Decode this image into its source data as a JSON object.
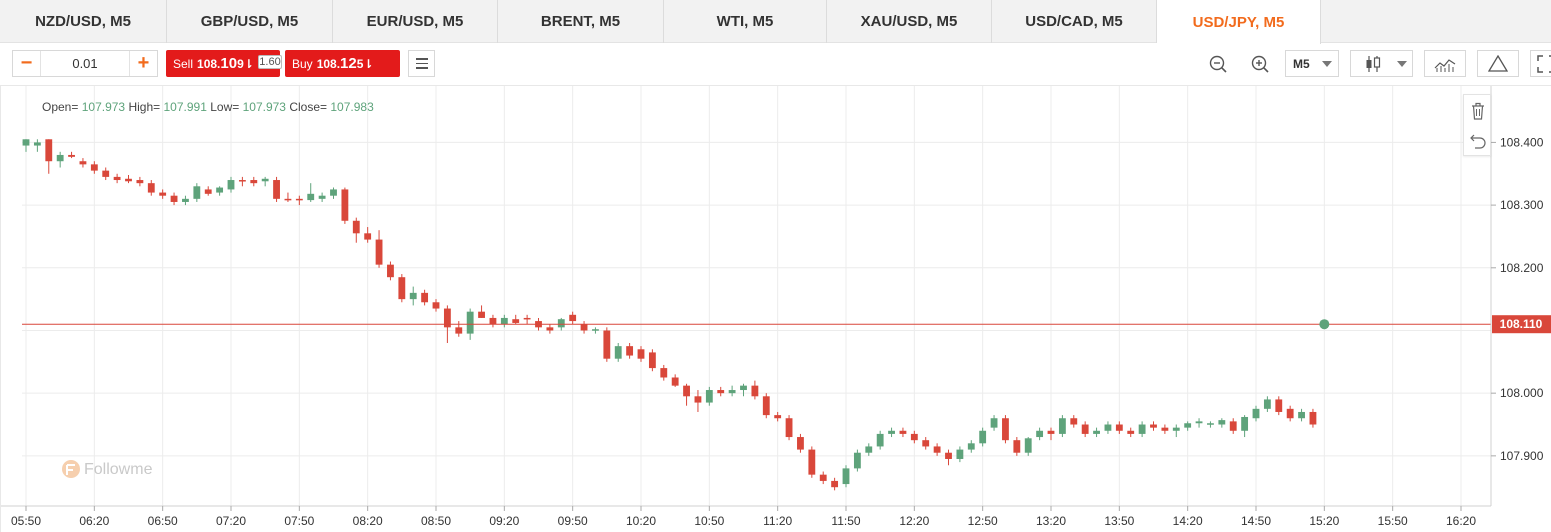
{
  "tabs": [
    {
      "label": "NZD/USD, M5",
      "active": false
    },
    {
      "label": "GBP/USD, M5",
      "active": false
    },
    {
      "label": "EUR/USD, M5",
      "active": false
    },
    {
      "label": "BRENT, M5",
      "active": false
    },
    {
      "label": "WTI, M5",
      "active": false
    },
    {
      "label": "XAU/USD, M5",
      "active": false
    },
    {
      "label": "USD/CAD, M5",
      "active": false
    },
    {
      "label": "USD/JPY, M5",
      "active": true
    }
  ],
  "toolbar": {
    "quantity": "0.01",
    "minus": "−",
    "plus": "+",
    "sell_label": "Sell",
    "sell_price_main": "108.",
    "sell_price_big": "10",
    "sell_price_tail": "9",
    "buy_label": "Buy",
    "buy_price_main": "108.",
    "buy_price_big": "12",
    "buy_price_tail": "5",
    "arrow": "⇂",
    "spread": "1.60",
    "timeframe": "M5"
  },
  "ohlc": {
    "open_label": "Open=",
    "open": "107.973",
    "high_label": "High=",
    "high": "107.991",
    "low_label": "Low=",
    "low": "107.973",
    "close_label": "Close=",
    "close": "107.983"
  },
  "watermark": "Followme",
  "colors": {
    "up": "#5ea37b",
    "down": "#d9473a",
    "accent": "#f26b1d",
    "price_line": "#d9473a"
  },
  "icons": [
    "zoom-out-icon",
    "zoom-in-icon",
    "candlestick-icon",
    "indicators-icon",
    "drawing-icon",
    "fullscreen-icon",
    "trash-icon",
    "undo-icon",
    "menu-icon"
  ],
  "chart_data": {
    "type": "candlestick",
    "symbol": "USD/JPY",
    "timeframe": "M5",
    "current_price": "108.110",
    "y_ticks": [
      "108.400",
      "108.300",
      "108.200",
      "108.000",
      "107.900"
    ],
    "x_ticks": [
      "05:50",
      "06:20",
      "06:50",
      "07:20",
      "07:50",
      "08:20",
      "08:50",
      "09:20",
      "09:50",
      "10:20",
      "10:50",
      "11:20",
      "11:50",
      "12:20",
      "12:50",
      "13:20",
      "13:50",
      "14:20",
      "14:50",
      "15:20",
      "15:50",
      "16:20"
    ],
    "ylim": [
      107.82,
      108.49
    ],
    "x_range": [
      "05:50",
      "16:20"
    ],
    "grid": true,
    "candles": [
      {
        "t": "05:50",
        "o": 108.395,
        "h": 108.405,
        "l": 108.385,
        "c": 108.405
      },
      {
        "t": "05:55",
        "o": 108.395,
        "h": 108.405,
        "l": 108.385,
        "c": 108.4
      },
      {
        "t": "06:00",
        "o": 108.405,
        "h": 108.405,
        "l": 108.35,
        "c": 108.37
      },
      {
        "t": "06:05",
        "o": 108.37,
        "h": 108.385,
        "l": 108.36,
        "c": 108.38
      },
      {
        "t": "06:10",
        "o": 108.38,
        "h": 108.385,
        "l": 108.375,
        "c": 108.377
      },
      {
        "t": "06:15",
        "o": 108.37,
        "h": 108.375,
        "l": 108.36,
        "c": 108.365
      },
      {
        "t": "06:20",
        "o": 108.365,
        "h": 108.37,
        "l": 108.35,
        "c": 108.355
      },
      {
        "t": "06:25",
        "o": 108.355,
        "h": 108.36,
        "l": 108.34,
        "c": 108.345
      },
      {
        "t": "06:30",
        "o": 108.345,
        "h": 108.35,
        "l": 108.335,
        "c": 108.34
      },
      {
        "t": "06:35",
        "o": 108.342,
        "h": 108.348,
        "l": 108.335,
        "c": 108.338
      },
      {
        "t": "06:40",
        "o": 108.34,
        "h": 108.345,
        "l": 108.33,
        "c": 108.335
      },
      {
        "t": "06:45",
        "o": 108.335,
        "h": 108.34,
        "l": 108.315,
        "c": 108.32
      },
      {
        "t": "06:50",
        "o": 108.32,
        "h": 108.325,
        "l": 108.31,
        "c": 108.315
      },
      {
        "t": "06:55",
        "o": 108.315,
        "h": 108.32,
        "l": 108.3,
        "c": 108.305
      },
      {
        "t": "07:00",
        "o": 108.305,
        "h": 108.315,
        "l": 108.3,
        "c": 108.31
      },
      {
        "t": "07:05",
        "o": 108.31,
        "h": 108.335,
        "l": 108.305,
        "c": 108.33
      },
      {
        "t": "07:10",
        "o": 108.325,
        "h": 108.33,
        "l": 108.315,
        "c": 108.318
      },
      {
        "t": "07:15",
        "o": 108.32,
        "h": 108.33,
        "l": 108.315,
        "c": 108.328
      },
      {
        "t": "07:20",
        "o": 108.325,
        "h": 108.345,
        "l": 108.32,
        "c": 108.34
      },
      {
        "t": "07:25",
        "o": 108.34,
        "h": 108.345,
        "l": 108.33,
        "c": 108.338
      },
      {
        "t": "07:30",
        "o": 108.34,
        "h": 108.345,
        "l": 108.33,
        "c": 108.335
      },
      {
        "t": "07:35",
        "o": 108.338,
        "h": 108.345,
        "l": 108.33,
        "c": 108.342
      },
      {
        "t": "07:40",
        "o": 108.34,
        "h": 108.345,
        "l": 108.305,
        "c": 108.31
      },
      {
        "t": "07:45",
        "o": 108.31,
        "h": 108.32,
        "l": 108.305,
        "c": 108.308
      },
      {
        "t": "07:50",
        "o": 108.31,
        "h": 108.315,
        "l": 108.3,
        "c": 108.308
      },
      {
        "t": "07:55",
        "o": 108.308,
        "h": 108.335,
        "l": 108.305,
        "c": 108.318
      },
      {
        "t": "08:00",
        "o": 108.31,
        "h": 108.32,
        "l": 108.305,
        "c": 108.315
      },
      {
        "t": "08:05",
        "o": 108.315,
        "h": 108.328,
        "l": 108.31,
        "c": 108.325
      },
      {
        "t": "08:10",
        "o": 108.325,
        "h": 108.328,
        "l": 108.27,
        "c": 108.275
      },
      {
        "t": "08:15",
        "o": 108.275,
        "h": 108.28,
        "l": 108.24,
        "c": 108.255
      },
      {
        "t": "08:20",
        "o": 108.255,
        "h": 108.265,
        "l": 108.24,
        "c": 108.245
      },
      {
        "t": "08:25",
        "o": 108.245,
        "h": 108.26,
        "l": 108.2,
        "c": 108.205
      },
      {
        "t": "08:30",
        "o": 108.205,
        "h": 108.21,
        "l": 108.18,
        "c": 108.185
      },
      {
        "t": "08:35",
        "o": 108.185,
        "h": 108.19,
        "l": 108.145,
        "c": 108.15
      },
      {
        "t": "08:40",
        "o": 108.15,
        "h": 108.17,
        "l": 108.14,
        "c": 108.16
      },
      {
        "t": "08:45",
        "o": 108.16,
        "h": 108.165,
        "l": 108.14,
        "c": 108.145
      },
      {
        "t": "08:50",
        "o": 108.145,
        "h": 108.15,
        "l": 108.13,
        "c": 108.135
      },
      {
        "t": "08:55",
        "o": 108.135,
        "h": 108.14,
        "l": 108.08,
        "c": 108.105
      },
      {
        "t": "09:00",
        "o": 108.105,
        "h": 108.115,
        "l": 108.09,
        "c": 108.095
      },
      {
        "t": "09:05",
        "o": 108.095,
        "h": 108.135,
        "l": 108.085,
        "c": 108.13
      },
      {
        "t": "09:10",
        "o": 108.13,
        "h": 108.14,
        "l": 108.12,
        "c": 108.12
      },
      {
        "t": "09:15",
        "o": 108.12,
        "h": 108.125,
        "l": 108.105,
        "c": 108.11
      },
      {
        "t": "09:20",
        "o": 108.11,
        "h": 108.125,
        "l": 108.105,
        "c": 108.12
      },
      {
        "t": "09:25",
        "o": 108.118,
        "h": 108.125,
        "l": 108.11,
        "c": 108.112
      },
      {
        "t": "09:30",
        "o": 108.12,
        "h": 108.125,
        "l": 108.11,
        "c": 108.118
      },
      {
        "t": "09:35",
        "o": 108.115,
        "h": 108.12,
        "l": 108.1,
        "c": 108.105
      },
      {
        "t": "09:40",
        "o": 108.105,
        "h": 108.11,
        "l": 108.095,
        "c": 108.1
      },
      {
        "t": "09:45",
        "o": 108.105,
        "h": 108.12,
        "l": 108.1,
        "c": 108.118
      },
      {
        "t": "09:50",
        "o": 108.125,
        "h": 108.13,
        "l": 108.11,
        "c": 108.115
      },
      {
        "t": "09:55",
        "o": 108.11,
        "h": 108.115,
        "l": 108.095,
        "c": 108.1
      },
      {
        "t": "10:00",
        "o": 108.1,
        "h": 108.105,
        "l": 108.095,
        "c": 108.102
      },
      {
        "t": "10:05",
        "o": 108.1,
        "h": 108.105,
        "l": 108.05,
        "c": 108.055
      },
      {
        "t": "10:10",
        "o": 108.055,
        "h": 108.08,
        "l": 108.05,
        "c": 108.075
      },
      {
        "t": "10:15",
        "o": 108.075,
        "h": 108.08,
        "l": 108.055,
        "c": 108.06
      },
      {
        "t": "10:20",
        "o": 108.07,
        "h": 108.075,
        "l": 108.05,
        "c": 108.055
      },
      {
        "t": "10:25",
        "o": 108.065,
        "h": 108.07,
        "l": 108.035,
        "c": 108.04
      },
      {
        "t": "10:30",
        "o": 108.04,
        "h": 108.045,
        "l": 108.02,
        "c": 108.025
      },
      {
        "t": "10:35",
        "o": 108.025,
        "h": 108.03,
        "l": 108.01,
        "c": 108.012
      },
      {
        "t": "10:40",
        "o": 108.012,
        "h": 108.015,
        "l": 107.98,
        "c": 107.995
      },
      {
        "t": "10:45",
        "o": 107.995,
        "h": 108.005,
        "l": 107.97,
        "c": 107.985
      },
      {
        "t": "10:50",
        "o": 107.985,
        "h": 108.01,
        "l": 107.98,
        "c": 108.005
      },
      {
        "t": "10:55",
        "o": 108.005,
        "h": 108.01,
        "l": 107.995,
        "c": 108.0
      },
      {
        "t": "11:00",
        "o": 108.0,
        "h": 108.012,
        "l": 107.995,
        "c": 108.005
      },
      {
        "t": "11:05",
        "o": 108.005,
        "h": 108.015,
        "l": 107.995,
        "c": 108.012
      },
      {
        "t": "11:10",
        "o": 108.012,
        "h": 108.02,
        "l": 107.99,
        "c": 107.995
      },
      {
        "t": "11:15",
        "o": 107.995,
        "h": 108.0,
        "l": 107.96,
        "c": 107.965
      },
      {
        "t": "11:20",
        "o": 107.965,
        "h": 107.97,
        "l": 107.955,
        "c": 107.96
      },
      {
        "t": "11:25",
        "o": 107.96,
        "h": 107.965,
        "l": 107.925,
        "c": 107.93
      },
      {
        "t": "11:30",
        "o": 107.93,
        "h": 107.935,
        "l": 107.905,
        "c": 107.91
      },
      {
        "t": "11:35",
        "o": 107.91,
        "h": 107.915,
        "l": 107.865,
        "c": 107.87
      },
      {
        "t": "11:40",
        "o": 107.87,
        "h": 107.875,
        "l": 107.855,
        "c": 107.86
      },
      {
        "t": "11:45",
        "o": 107.86,
        "h": 107.865,
        "l": 107.845,
        "c": 107.85
      },
      {
        "t": "11:50",
        "o": 107.855,
        "h": 107.885,
        "l": 107.85,
        "c": 107.88
      },
      {
        "t": "11:55",
        "o": 107.88,
        "h": 107.91,
        "l": 107.875,
        "c": 107.905
      },
      {
        "t": "12:00",
        "o": 107.905,
        "h": 107.92,
        "l": 107.9,
        "c": 107.915
      },
      {
        "t": "12:05",
        "o": 107.915,
        "h": 107.94,
        "l": 107.91,
        "c": 107.935
      },
      {
        "t": "12:10",
        "o": 107.935,
        "h": 107.945,
        "l": 107.93,
        "c": 107.94
      },
      {
        "t": "12:15",
        "o": 107.94,
        "h": 107.945,
        "l": 107.93,
        "c": 107.935
      },
      {
        "t": "12:20",
        "o": 107.935,
        "h": 107.94,
        "l": 107.92,
        "c": 107.925
      },
      {
        "t": "12:25",
        "o": 107.925,
        "h": 107.93,
        "l": 107.91,
        "c": 107.915
      },
      {
        "t": "12:30",
        "o": 107.915,
        "h": 107.92,
        "l": 107.9,
        "c": 107.905
      },
      {
        "t": "12:35",
        "o": 107.905,
        "h": 107.91,
        "l": 107.885,
        "c": 107.895
      },
      {
        "t": "12:40",
        "o": 107.895,
        "h": 107.915,
        "l": 107.89,
        "c": 107.91
      },
      {
        "t": "12:45",
        "o": 107.91,
        "h": 107.925,
        "l": 107.905,
        "c": 107.92
      },
      {
        "t": "12:50",
        "o": 107.92,
        "h": 107.945,
        "l": 107.915,
        "c": 107.94
      },
      {
        "t": "12:55",
        "o": 107.945,
        "h": 107.965,
        "l": 107.94,
        "c": 107.96
      },
      {
        "t": "13:00",
        "o": 107.96,
        "h": 107.965,
        "l": 107.92,
        "c": 107.925
      },
      {
        "t": "13:05",
        "o": 107.925,
        "h": 107.93,
        "l": 107.9,
        "c": 107.905
      },
      {
        "t": "13:10",
        "o": 107.905,
        "h": 107.93,
        "l": 107.9,
        "c": 107.928
      },
      {
        "t": "13:15",
        "o": 107.93,
        "h": 107.945,
        "l": 107.925,
        "c": 107.94
      },
      {
        "t": "13:20",
        "o": 107.94,
        "h": 107.945,
        "l": 107.925,
        "c": 107.935
      },
      {
        "t": "13:25",
        "o": 107.935,
        "h": 107.965,
        "l": 107.93,
        "c": 107.96
      },
      {
        "t": "13:30",
        "o": 107.96,
        "h": 107.965,
        "l": 107.945,
        "c": 107.95
      },
      {
        "t": "13:35",
        "o": 107.95,
        "h": 107.955,
        "l": 107.93,
        "c": 107.935
      },
      {
        "t": "13:40",
        "o": 107.935,
        "h": 107.945,
        "l": 107.93,
        "c": 107.94
      },
      {
        "t": "13:45",
        "o": 107.94,
        "h": 107.955,
        "l": 107.935,
        "c": 107.95
      },
      {
        "t": "13:50",
        "o": 107.95,
        "h": 107.955,
        "l": 107.935,
        "c": 107.94
      },
      {
        "t": "13:55",
        "o": 107.94,
        "h": 107.945,
        "l": 107.93,
        "c": 107.935
      },
      {
        "t": "14:00",
        "o": 107.935,
        "h": 107.955,
        "l": 107.93,
        "c": 107.95
      },
      {
        "t": "14:05",
        "o": 107.95,
        "h": 107.955,
        "l": 107.94,
        "c": 107.945
      },
      {
        "t": "14:10",
        "o": 107.945,
        "h": 107.95,
        "l": 107.935,
        "c": 107.94
      },
      {
        "t": "14:15",
        "o": 107.94,
        "h": 107.95,
        "l": 107.93,
        "c": 107.945
      },
      {
        "t": "14:20",
        "o": 107.945,
        "h": 107.955,
        "l": 107.94,
        "c": 107.952
      },
      {
        "t": "14:25",
        "o": 107.952,
        "h": 107.96,
        "l": 107.945,
        "c": 107.955
      },
      {
        "t": "14:30",
        "o": 107.95,
        "h": 107.955,
        "l": 107.945,
        "c": 107.952
      },
      {
        "t": "14:35",
        "o": 107.95,
        "h": 107.96,
        "l": 107.945,
        "c": 107.957
      },
      {
        "t": "14:40",
        "o": 107.955,
        "h": 107.96,
        "l": 107.935,
        "c": 107.94
      },
      {
        "t": "14:45",
        "o": 107.94,
        "h": 107.965,
        "l": 107.93,
        "c": 107.962
      },
      {
        "t": "14:50",
        "o": 107.96,
        "h": 107.98,
        "l": 107.955,
        "c": 107.975
      },
      {
        "t": "14:55",
        "o": 107.975,
        "h": 107.995,
        "l": 107.97,
        "c": 107.99
      },
      {
        "t": "15:00",
        "o": 107.99,
        "h": 107.995,
        "l": 107.965,
        "c": 107.97
      },
      {
        "t": "15:05",
        "o": 107.975,
        "h": 107.98,
        "l": 107.955,
        "c": 107.96
      },
      {
        "t": "15:10",
        "o": 107.96,
        "h": 107.975,
        "l": 107.955,
        "c": 107.97
      },
      {
        "t": "15:15",
        "o": 107.97,
        "h": 107.975,
        "l": 107.945,
        "c": 107.95
      }
    ]
  }
}
